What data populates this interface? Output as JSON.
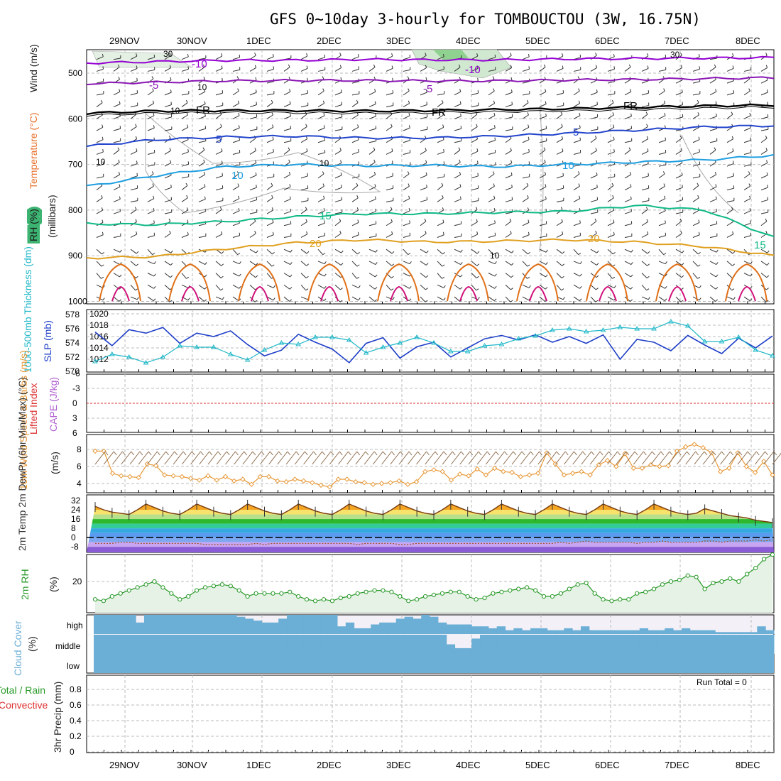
{
  "title": "GFS 0~10day 3-hourly for TOMBOUCTOU (3W, 16.75N)",
  "colors": {
    "temp_m10": "#9400d3",
    "temp_m5": "#8b17b5",
    "temp_fr": "#000000",
    "temp_5": "#2244cc",
    "temp_10": "#1f9ee0",
    "temp_15": "#10b987",
    "temp_20": "#e0a020",
    "temp_25": "#e07018",
    "temp_30": "#d0107a",
    "slp": "#1f3fc8",
    "thickness": "#20b8c8",
    "wind10": "#e89a3a",
    "barb": "#333333",
    "dewpoint": "#a0522d",
    "rh2m": "#2a9a2a",
    "rh_fill": "#e6f2e6",
    "cloud": "#6baed6",
    "cloud_bg": "#f3f0f7",
    "grid": "#bbbbbb",
    "li_zero": "#dd3333"
  },
  "chart_data": [
    {
      "type": "heatmap",
      "name": "upper-air",
      "ylabel_parts": [
        "RH (%)",
        "Temperature (°C)",
        "Wind (m/s)"
      ],
      "ylabel2": "(millibars)",
      "yticks": [
        "500",
        "600",
        "700",
        "800",
        "900",
        "1000"
      ],
      "ylim": [
        1000,
        450
      ],
      "x_dates": [
        "29NOV",
        "30NOV",
        "1DEC",
        "2DEC",
        "3DEC",
        "4DEC",
        "5DEC",
        "6DEC",
        "7DEC",
        "8DEC"
      ],
      "isotherms": [
        {
          "label": "-10",
          "series": [
            478,
            475,
            472,
            472,
            470,
            471,
            471,
            469,
            468,
            467,
            466
          ]
        },
        {
          "label": "-5",
          "series": [
            523,
            520,
            517,
            516,
            516,
            517,
            517,
            515,
            514,
            512,
            510
          ]
        },
        {
          "label": "FR",
          "series": [
            588,
            583,
            582,
            582,
            583,
            582,
            580,
            578,
            575,
            572,
            570
          ]
        },
        {
          "label": "5",
          "series": [
            660,
            646,
            640,
            638,
            642,
            642,
            638,
            632,
            625,
            618,
            615
          ]
        },
        {
          "label": "10",
          "series": [
            748,
            725,
            705,
            700,
            703,
            702,
            705,
            700,
            695,
            690,
            680
          ]
        },
        {
          "label": "15",
          "series": [
            830,
            832,
            825,
            815,
            808,
            808,
            805,
            803,
            790,
            800,
            860
          ]
        },
        {
          "label": "20",
          "series": [
            905,
            902,
            885,
            872,
            865,
            870,
            868,
            865,
            870,
            880,
            900
          ]
        }
      ],
      "contour_labels_upper": [
        "-10",
        "-10",
        "-5",
        "-5",
        "FR",
        "FR",
        "FR",
        "5",
        "5",
        "10",
        "10",
        "15",
        "15",
        "20",
        "20"
      ],
      "rh_contour_labels": [
        "30",
        "10",
        "10",
        "10",
        "10",
        "10",
        "30"
      ]
    },
    {
      "type": "line",
      "name": "slp-thickness",
      "ylabel_left": "1000-500mb Thickness (dm)",
      "ylabel_right": "SLP (mb)",
      "yticks_left": [
        "578",
        "576",
        "574",
        "572",
        "570"
      ],
      "yticks_right": [
        "1020",
        "1018",
        "1016",
        "1014",
        "1012"
      ],
      "series": [
        {
          "name": "SLP",
          "axis": "right",
          "values": [
            1016.8,
            1014.4,
            1017.2,
            1016.6,
            1017.6,
            1014.8,
            1016.6,
            1016.0,
            1017.0,
            1014.6,
            1012.6,
            1013.6,
            1016.4,
            1015.0,
            1013.8,
            1011.4,
            1014.8,
            1015.8,
            1012.2,
            1014.2,
            1015.0,
            1012.4,
            1014.0,
            1015.6,
            1016.2,
            1015.4,
            1016.3,
            1015.0,
            1016.0,
            1014.8,
            1016.3,
            1012.0,
            1015.5,
            1015.0,
            1013.5,
            1016.2,
            1014.5,
            1013.0,
            1015.7,
            1014.0,
            1016.1
          ]
        },
        {
          "name": "Thickness",
          "axis": "left",
          "values": [
            571.4,
            572.4,
            572.0,
            571.2,
            572.0,
            573.6,
            573.4,
            573.4,
            572.4,
            571.6,
            573.0,
            574.0,
            573.8,
            574.8,
            574.8,
            574.4,
            572.6,
            573.4,
            574.0,
            574.8,
            574.0,
            572.8,
            572.8,
            573.6,
            573.8,
            574.6,
            575.0,
            575.8,
            576.0,
            575.6,
            575.8,
            576.2,
            576.0,
            576.0,
            577.0,
            576.4,
            574.2,
            574.2,
            574.8,
            573.0,
            572.2
          ]
        }
      ]
    },
    {
      "type": "line",
      "name": "li-cape",
      "ylabel_left": "Lifted Index",
      "ylabel_right": "CAPE (J/kg)",
      "yticks": [
        "-6",
        "-3",
        "0",
        "3",
        "6"
      ],
      "ylim": [
        -6,
        6
      ]
    },
    {
      "type": "line",
      "name": "wind10m",
      "ylabel": "10m Wind Speed & Barbs (m/s)",
      "ylabel_unit": "(m/s)",
      "yticks": [
        "8",
        "6",
        "4"
      ],
      "ylim": [
        3,
        9.5
      ],
      "series": [
        {
          "name": "10m Wind",
          "values": [
            7.8,
            7.8,
            5.2,
            4.9,
            4.8,
            4.7,
            6.3,
            6.1,
            5.0,
            4.9,
            4.8,
            4.6,
            4.4,
            4.9,
            4.4,
            4.8,
            4.3,
            4.5,
            3.9,
            4.8,
            4.8,
            4.3,
            4.2,
            4.5,
            4.3,
            4.1,
            3.8,
            3.6,
            4.5,
            4.5,
            4.2,
            4.1,
            3.9,
            4.0,
            4.1,
            4.3,
            3.9,
            4.2,
            5.4,
            5.6,
            5.4,
            4.4,
            5.1,
            4.9,
            5.7,
            5.0,
            5.8,
            5.4,
            5.3,
            4.8,
            5.0,
            5.2,
            7.6,
            6.3,
            5.0,
            5.2,
            5.4,
            5.0,
            6.2,
            6.7,
            6.0,
            7.5,
            5.8,
            5.8,
            6.2,
            6.0,
            6.1,
            7.8,
            8.3,
            8.6,
            8.2,
            7.6,
            5.4,
            5.8,
            7.6,
            6.0,
            5.3,
            6.6,
            5.0
          ]
        }
      ]
    },
    {
      "type": "area",
      "name": "temp-dewpoint",
      "ylabel": "2m Temp 2m DewPt (6hr Min/Max) (°C)",
      "yticks": [
        "32",
        "24",
        "16",
        "8",
        "0",
        "-8"
      ],
      "ylim": [
        -14,
        34
      ],
      "series": [
        {
          "name": "2m Temp",
          "values": [
            27,
            24,
            22,
            21,
            20,
            24,
            29,
            26,
            23,
            21,
            20,
            24,
            29,
            26,
            23,
            21,
            20,
            24,
            29,
            26,
            23,
            21,
            20,
            24,
            29,
            26,
            23,
            21,
            20,
            24,
            29,
            26,
            23,
            21,
            20,
            24,
            29,
            26,
            23,
            21,
            20,
            24,
            29,
            26,
            23,
            21,
            20,
            24,
            29,
            26,
            23,
            21,
            20,
            24,
            29,
            26,
            23,
            21,
            20,
            24,
            29,
            26,
            23,
            21,
            20,
            24,
            29,
            26,
            23,
            21,
            20,
            21,
            25,
            23,
            21,
            19,
            18,
            17,
            15,
            14,
            13
          ]
        },
        {
          "name": "2m DewPt",
          "values": [
            -5,
            -5,
            -5,
            -4,
            -4,
            -5,
            -5,
            -5,
            -5,
            -5,
            -5,
            -5,
            -5,
            -6,
            -6,
            -6,
            -6,
            -6,
            -6,
            -5,
            -6,
            -5,
            -5,
            -5,
            -5,
            -5,
            -5,
            -5,
            -5,
            -5,
            -5,
            -6,
            -5,
            -5,
            -5,
            -5,
            -6,
            -6,
            -5,
            -5,
            -5,
            -5,
            -5,
            -5,
            -5,
            -5,
            -5,
            -5,
            -5,
            -5,
            -5,
            -5,
            -5,
            -5,
            -5,
            -4,
            -5,
            -4,
            -3,
            -4,
            -4,
            -4,
            -4,
            -4,
            -5,
            -4,
            -4,
            -3,
            -4,
            -4,
            -4,
            -4,
            -3,
            -3,
            -4,
            -3,
            -3,
            -3,
            -2,
            -3,
            -2
          ]
        }
      ]
    },
    {
      "type": "area",
      "name": "rh2m",
      "ylabel": "2m RH",
      "ylabel_unit": "(%)",
      "yticks": [
        "20"
      ],
      "ylim": [
        0,
        40
      ],
      "series": [
        {
          "name": "2m RH",
          "values": [
            8,
            7,
            10,
            12,
            14,
            16,
            18,
            20,
            16,
            12,
            8,
            10,
            14,
            16,
            17,
            18,
            17,
            14,
            10,
            12,
            12,
            12,
            12,
            13,
            10,
            8,
            7,
            8,
            7,
            9,
            10,
            12,
            13,
            14,
            14,
            13,
            10,
            7,
            8,
            10,
            11,
            12,
            13,
            13,
            10,
            8,
            9,
            12,
            13,
            14,
            15,
            16,
            14,
            10,
            10,
            12,
            15,
            18,
            19,
            12,
            8,
            7,
            8,
            8,
            12,
            13,
            15,
            18,
            20,
            21,
            24,
            23,
            15,
            19,
            20,
            22,
            20,
            25,
            29,
            35,
            38
          ]
        }
      ]
    },
    {
      "type": "area",
      "name": "cloud-cover",
      "ylabel": "Cloud Cover",
      "ylabel_unit": "(%)",
      "yticks": [
        "high",
        "middle",
        "low"
      ],
      "series": [
        {
          "name": "high",
          "values": [
            100,
            100,
            100,
            100,
            100,
            60,
            100,
            100,
            100,
            100,
            100,
            100,
            100,
            100,
            100,
            100,
            100,
            90,
            80,
            70,
            60,
            60,
            80,
            100,
            100,
            100,
            100,
            100,
            100,
            40,
            60,
            30,
            30,
            50,
            60,
            60,
            80,
            90,
            80,
            100,
            90,
            60,
            50,
            50,
            50,
            40,
            40,
            30,
            40,
            20,
            30,
            20,
            30,
            30,
            20,
            20,
            30,
            20,
            40,
            20,
            20,
            20,
            20,
            20,
            20,
            30,
            20,
            20,
            30,
            20,
            30,
            20,
            20,
            20,
            10,
            10,
            10,
            10,
            10,
            40,
            20
          ]
        },
        {
          "name": "middle",
          "values": [
            0,
            0,
            0,
            0,
            0,
            0,
            0,
            0,
            0,
            0,
            0,
            0,
            0,
            0,
            0,
            0,
            0,
            0,
            0,
            0,
            0,
            0,
            0,
            0,
            0,
            0,
            0,
            0,
            0,
            0,
            0,
            0,
            0,
            0,
            0,
            0,
            0,
            0,
            0,
            0,
            0,
            0,
            50,
            70,
            70,
            20,
            0,
            0,
            0,
            0,
            0,
            0,
            0,
            0,
            0,
            0,
            0,
            0,
            0,
            0,
            0,
            0,
            0,
            0,
            0,
            0,
            0,
            0,
            0,
            0,
            0,
            0,
            0,
            0,
            0,
            0,
            0,
            0,
            0,
            0,
            0
          ]
        }
      ]
    },
    {
      "type": "bar",
      "name": "precip",
      "ylabel": "3hr Precip (mm)",
      "ylabel_left": "Total / Rain",
      "ylabel_left2": "Convective",
      "yticks": [
        "0.8",
        "0.6",
        "0.4",
        "0.2",
        "0"
      ],
      "ylim": [
        0,
        0.9
      ],
      "run_total": "Run Total = 0",
      "values": []
    }
  ]
}
